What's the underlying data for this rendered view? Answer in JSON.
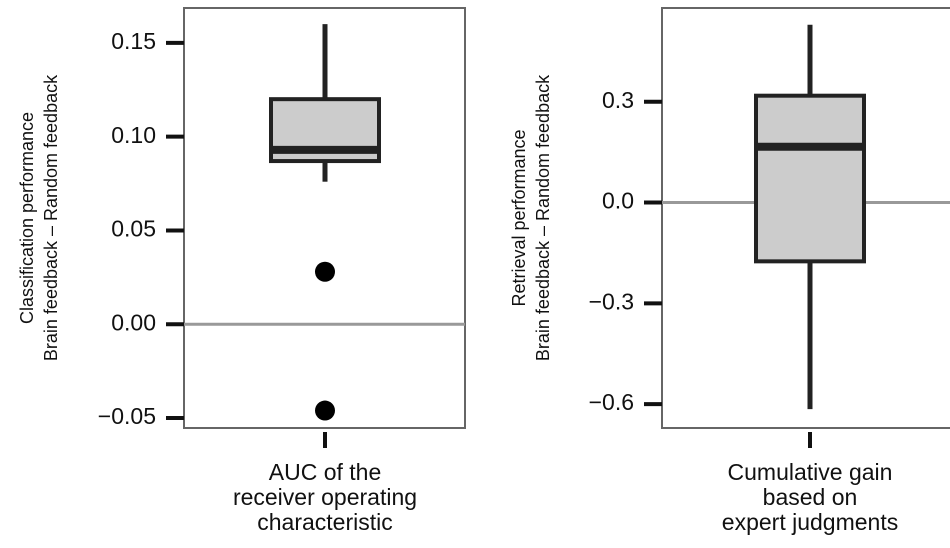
{
  "chart_data": [
    {
      "type": "box",
      "ylabel": [
        "Classification performance",
        "Brain feedback – Random feedback"
      ],
      "categories": [
        "AUC of the\nreceiver operating\ncharacteristic"
      ],
      "whisker_high": [
        0.16
      ],
      "q3": [
        0.12
      ],
      "median": [
        0.093
      ],
      "q1": [
        0.087
      ],
      "whisker_low": [
        0.076
      ],
      "outliers": [
        [
          0.028,
          -0.046
        ]
      ],
      "color": "#cccccc",
      "hline": 0,
      "ylim": [
        -0.0553,
        0.1686
      ],
      "yticks": [
        {
          "value": -0.05,
          "label": "−0.05"
        },
        {
          "value": 0,
          "label": "0.00"
        },
        0.05,
        {
          "value": 0.1,
          "label": "0.10"
        },
        0.15
      ]
    },
    {
      "type": "box",
      "ylabel": [
        "Retrieval performance",
        "Brain feedback – Random feedback"
      ],
      "categories": [
        "Cumulative gain\nbased on\nexpert judgments"
      ],
      "whisker_high": [
        0.529
      ],
      "q3": [
        0.318
      ],
      "median": [
        0.166
      ],
      "q1": [
        -0.175
      ],
      "whisker_low": [
        -0.615
      ],
      "outliers": [
        []
      ],
      "color": "#cccccc",
      "hline": 0,
      "ylim": [
        -0.671,
        0.579
      ],
      "yticks": [
        {
          "value": -0.6,
          "label": "−0.6"
        },
        {
          "value": -0.3,
          "label": "−0.3"
        },
        {
          "value": 0,
          "label": "0.0"
        },
        0.3
      ]
    }
  ]
}
